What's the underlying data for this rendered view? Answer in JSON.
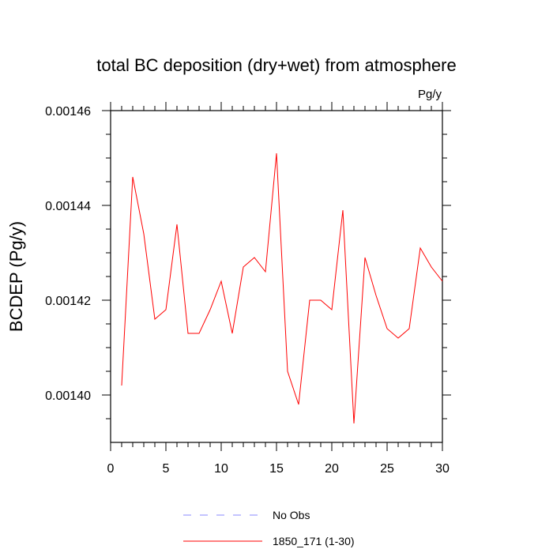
{
  "chart_data": {
    "type": "line",
    "title": "total BC deposition (dry+wet) from atmosphere",
    "units": "Pg/y",
    "xlabel": "",
    "ylabel": "BCDEP  (Pg/y)",
    "xlim": [
      0,
      30
    ],
    "ylim": [
      0.00139,
      0.00146
    ],
    "xticks": [
      0,
      5,
      10,
      15,
      20,
      25,
      30
    ],
    "xtick_labels": [
      "0",
      "5",
      "10",
      "15",
      "20",
      "25",
      "30"
    ],
    "yticks": [
      0.0014,
      0.00142,
      0.00144,
      0.00146
    ],
    "ytick_labels": [
      "0.00140",
      "0.00142",
      "0.00144",
      "0.00146"
    ],
    "grid": false,
    "legend_position": "bottom",
    "series": [
      {
        "name": "No Obs",
        "color": "#8888ff",
        "dash": "dashed",
        "x": [],
        "values": []
      },
      {
        "name": "1850_171 (1-30)",
        "color": "#ff0000",
        "dash": "solid",
        "x": [
          1,
          2,
          3,
          4,
          5,
          6,
          7,
          8,
          9,
          10,
          11,
          12,
          13,
          14,
          15,
          16,
          17,
          18,
          19,
          20,
          21,
          22,
          23,
          24,
          25,
          26,
          27,
          28,
          29,
          30
        ],
        "values": [
          0.001402,
          0.001446,
          0.001434,
          0.001416,
          0.001418,
          0.001436,
          0.001413,
          0.001413,
          0.001418,
          0.001424,
          0.001413,
          0.001427,
          0.001429,
          0.001426,
          0.001451,
          0.001405,
          0.001398,
          0.00142,
          0.00142,
          0.001418,
          0.001439,
          0.001394,
          0.001429,
          0.001421,
          0.001414,
          0.001412,
          0.001414,
          0.001431,
          0.001427,
          0.001424
        ]
      }
    ]
  }
}
